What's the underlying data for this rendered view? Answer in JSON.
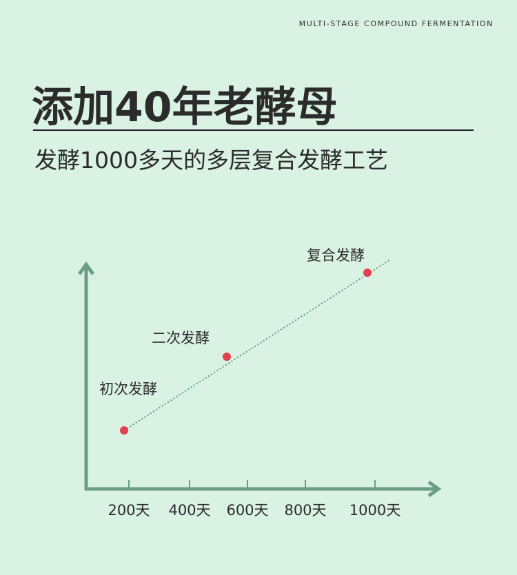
{
  "header": {
    "tagline": "MULTI-STAGE COMPOUND FERMENTATION",
    "title": "添加40年老酵母",
    "subtitle": "发酵1000多天的多层复合发酵工艺"
  },
  "diagram": {
    "stages": [
      "初次发酵",
      "二次发酵",
      "复合发酵"
    ],
    "ticks": [
      "200天",
      "400天",
      "600天",
      "800天",
      "1000天"
    ]
  }
}
